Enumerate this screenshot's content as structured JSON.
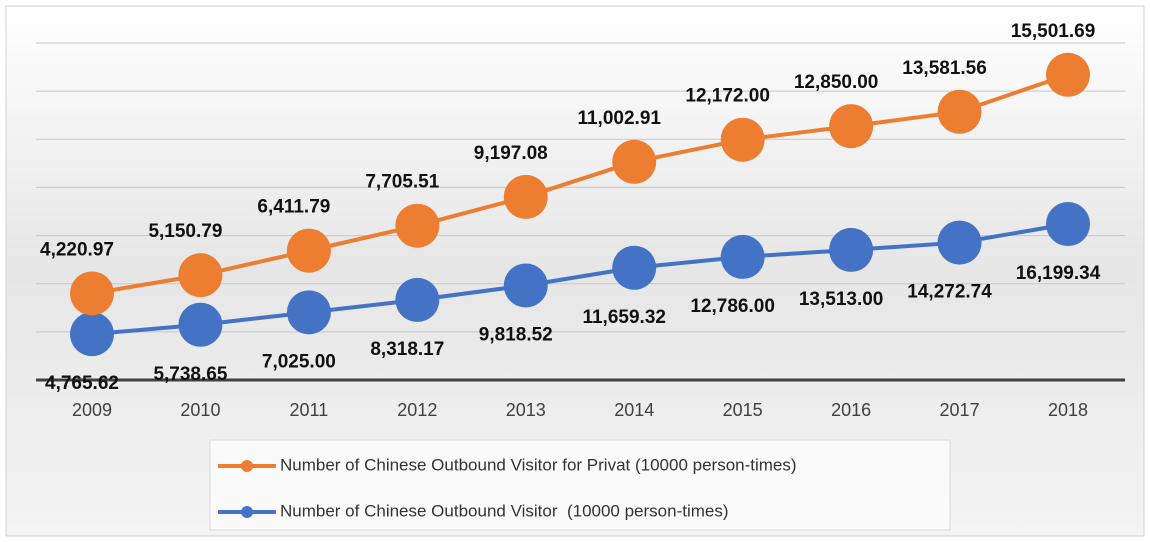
{
  "chart_data": {
    "type": "line",
    "stacked": true,
    "categories": [
      "2009",
      "2010",
      "2011",
      "2012",
      "2013",
      "2014",
      "2015",
      "2016",
      "2017",
      "2018"
    ],
    "series": [
      {
        "name": "Number of Chinese Outbound Visitor  (10000 person-times)",
        "color": "#4472c4",
        "values": [
          4765.62,
          5738.65,
          7025.0,
          8318.17,
          9818.52,
          11659.32,
          12786.0,
          13513.0,
          14272.74,
          16199.34
        ],
        "value_labels": [
          "4,765.62",
          "5,738.65",
          "7,025.00",
          "8,318.17",
          "9,818.52",
          "11,659.32",
          "12,786.00",
          "13,513.00",
          "14,272.74",
          "16,199.34"
        ]
      },
      {
        "name": "Number of Chinese Outbound Visitor for Privat (10000 person-times)",
        "color": "#ed7d31",
        "values": [
          4220.97,
          5150.79,
          6411.79,
          7705.51,
          9197.08,
          11002.91,
          12172.0,
          12850.0,
          13581.56,
          15501.69
        ],
        "value_labels": [
          "4,220.97",
          "5,150.79",
          "6,411.79",
          "7,705.51",
          "9,197.08",
          "11,002.91",
          "12,172.00",
          "12,850.00",
          "13,581.56",
          "15,501.69"
        ]
      }
    ],
    "ylim": [
      0,
      35000
    ],
    "yticks": [
      0,
      5000,
      10000,
      15000,
      20000,
      25000,
      30000,
      35000
    ],
    "grid": true
  }
}
